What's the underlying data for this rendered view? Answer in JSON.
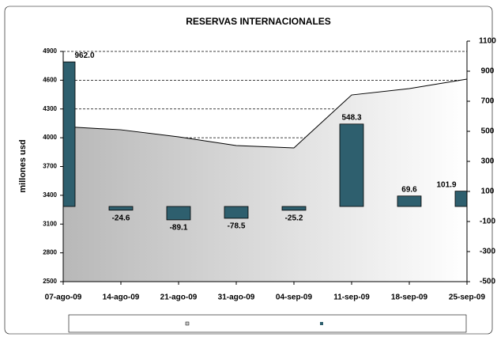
{
  "chart_data": {
    "type": "bar-area",
    "title": "RESERVAS INTERNACIONALES",
    "y_label": "millones usd",
    "categories": [
      "07-ago-09",
      "14-ago-09",
      "21-ago-09",
      "31-ago-09",
      "04-sep-09",
      "11-sep-09",
      "18-sep-09",
      "25-sep-09"
    ],
    "series": [
      {
        "type": "area",
        "color": "#c8c8c8",
        "values": [
          4116,
          4083,
          4009,
          3919,
          3894,
          4446,
          4512,
          4611
        ]
      },
      {
        "type": "bar",
        "axis": "y2",
        "color": "#2e5f6e",
        "values": [
          962.0,
          -24.6,
          -89.1,
          -78.5,
          -25.2,
          548.3,
          69.6,
          101.9
        ],
        "value_labels": [
          "962.0",
          "-24.6",
          "-89.1",
          "-78.5",
          "-25.2",
          "548.3",
          "69.6",
          "101.9"
        ]
      }
    ],
    "ylim": [
      2500,
      4900
    ],
    "yticks": [
      2500,
      2800,
      3100,
      3400,
      3700,
      4000,
      4300,
      4600,
      4900
    ],
    "y2lim": [
      -500,
      1100
    ],
    "y2ticks": [
      -500,
      -300,
      -100,
      100,
      300,
      500,
      700,
      900,
      1100
    ],
    "grid": true
  }
}
